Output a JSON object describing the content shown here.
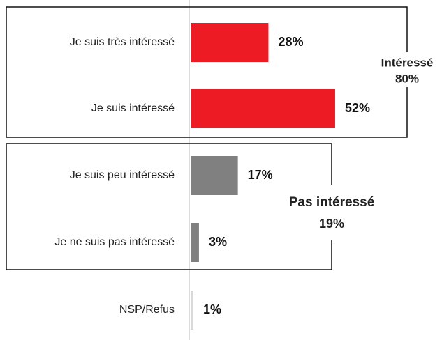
{
  "chart_data": {
    "type": "hbar",
    "categories": [
      "Je suis très intéressé",
      "Je suis intéressé",
      "Je suis peu intéressé",
      "Je ne suis pas intéressé",
      "NSP/Refus"
    ],
    "values": [
      28,
      52,
      17,
      3,
      1
    ],
    "value_labels": [
      "28%",
      "52%",
      "17%",
      "3%",
      "1%"
    ],
    "colors": [
      "#ed1c24",
      "#ed1c24",
      "#808080",
      "#808080",
      "#d9d9d9"
    ],
    "groups": [
      {
        "name": "Intéressé",
        "total": "80%",
        "color": "#ed1c24"
      },
      {
        "name": "Pas intéressé",
        "total": "19%",
        "color": "#a0a0a0"
      }
    ]
  }
}
